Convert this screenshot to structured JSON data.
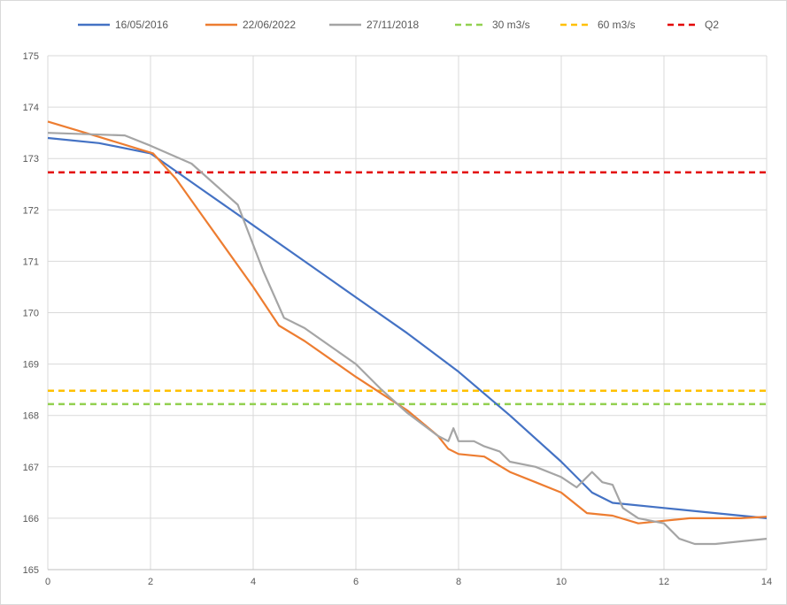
{
  "chart_data": {
    "type": "line",
    "title": "",
    "xlabel": "",
    "ylabel": "",
    "xlim": [
      0,
      14
    ],
    "ylim": [
      165,
      175
    ],
    "x_ticks": [
      "0",
      "2",
      "4",
      "6",
      "8",
      "10",
      "12",
      "14"
    ],
    "y_ticks": [
      "165",
      "166",
      "167",
      "168",
      "169",
      "170",
      "171",
      "172",
      "173",
      "174",
      "175"
    ],
    "grid": true,
    "legend_position": "top",
    "series": [
      {
        "name": "16/05/2016",
        "color": "#4472c4",
        "dashed": false,
        "points": [
          [
            0,
            173.4
          ],
          [
            1,
            173.3
          ],
          [
            2,
            173.1
          ],
          [
            3,
            172.4
          ],
          [
            4,
            171.7
          ],
          [
            5,
            171.0
          ],
          [
            6,
            170.3
          ],
          [
            7,
            169.6
          ],
          [
            8,
            168.85
          ],
          [
            9,
            168.0
          ],
          [
            10,
            167.1
          ],
          [
            10.6,
            166.5
          ],
          [
            11,
            166.3
          ],
          [
            12,
            166.2
          ],
          [
            13,
            166.1
          ],
          [
            14,
            166.0
          ]
        ]
      },
      {
        "name": "22/06/2022",
        "color": "#ed7d31",
        "dashed": false,
        "points": [
          [
            0,
            173.72
          ],
          [
            1,
            173.42
          ],
          [
            2.05,
            173.1
          ],
          [
            2.5,
            172.6
          ],
          [
            3,
            171.9
          ],
          [
            4,
            170.5
          ],
          [
            4.5,
            169.75
          ],
          [
            5,
            169.45
          ],
          [
            6,
            168.75
          ],
          [
            7,
            168.1
          ],
          [
            7.6,
            167.6
          ],
          [
            7.8,
            167.35
          ],
          [
            8,
            167.25
          ],
          [
            8.5,
            167.2
          ],
          [
            9,
            166.9
          ],
          [
            9.5,
            166.7
          ],
          [
            10,
            166.5
          ],
          [
            10.5,
            166.1
          ],
          [
            11,
            166.05
          ],
          [
            11.5,
            165.9
          ],
          [
            12,
            165.95
          ],
          [
            12.5,
            166.0
          ],
          [
            13.5,
            166.0
          ],
          [
            14,
            166.03
          ]
        ]
      },
      {
        "name": "27/11/2018",
        "color": "#a5a5a5",
        "dashed": false,
        "points": [
          [
            0,
            173.5
          ],
          [
            1.5,
            173.45
          ],
          [
            2,
            173.25
          ],
          [
            2.8,
            172.9
          ],
          [
            3.7,
            172.1
          ],
          [
            4.2,
            170.8
          ],
          [
            4.6,
            169.9
          ],
          [
            5,
            169.7
          ],
          [
            6,
            169.0
          ],
          [
            6.5,
            168.5
          ],
          [
            7,
            168.05
          ],
          [
            7.6,
            167.6
          ],
          [
            7.8,
            167.5
          ],
          [
            7.9,
            167.75
          ],
          [
            8,
            167.5
          ],
          [
            8.3,
            167.5
          ],
          [
            8.5,
            167.4
          ],
          [
            8.8,
            167.3
          ],
          [
            9,
            167.1
          ],
          [
            9.5,
            167.0
          ],
          [
            10,
            166.8
          ],
          [
            10.3,
            166.6
          ],
          [
            10.6,
            166.9
          ],
          [
            10.8,
            166.7
          ],
          [
            11,
            166.65
          ],
          [
            11.2,
            166.2
          ],
          [
            11.5,
            166.0
          ],
          [
            12,
            165.9
          ],
          [
            12.3,
            165.6
          ],
          [
            12.6,
            165.5
          ],
          [
            13,
            165.5
          ],
          [
            13.5,
            165.55
          ],
          [
            14,
            165.6
          ]
        ]
      },
      {
        "name": "30 m3/s",
        "color": "#92d050",
        "dashed": true,
        "points": [
          [
            0,
            168.22
          ],
          [
            14,
            168.22
          ]
        ]
      },
      {
        "name": "60 m3/s",
        "color": "#ffc000",
        "dashed": true,
        "points": [
          [
            0,
            168.48
          ],
          [
            14,
            168.48
          ]
        ]
      },
      {
        "name": "Q2",
        "color": "#e30000",
        "dashed": true,
        "points": [
          [
            0,
            172.73
          ],
          [
            14,
            172.73
          ]
        ]
      }
    ]
  }
}
